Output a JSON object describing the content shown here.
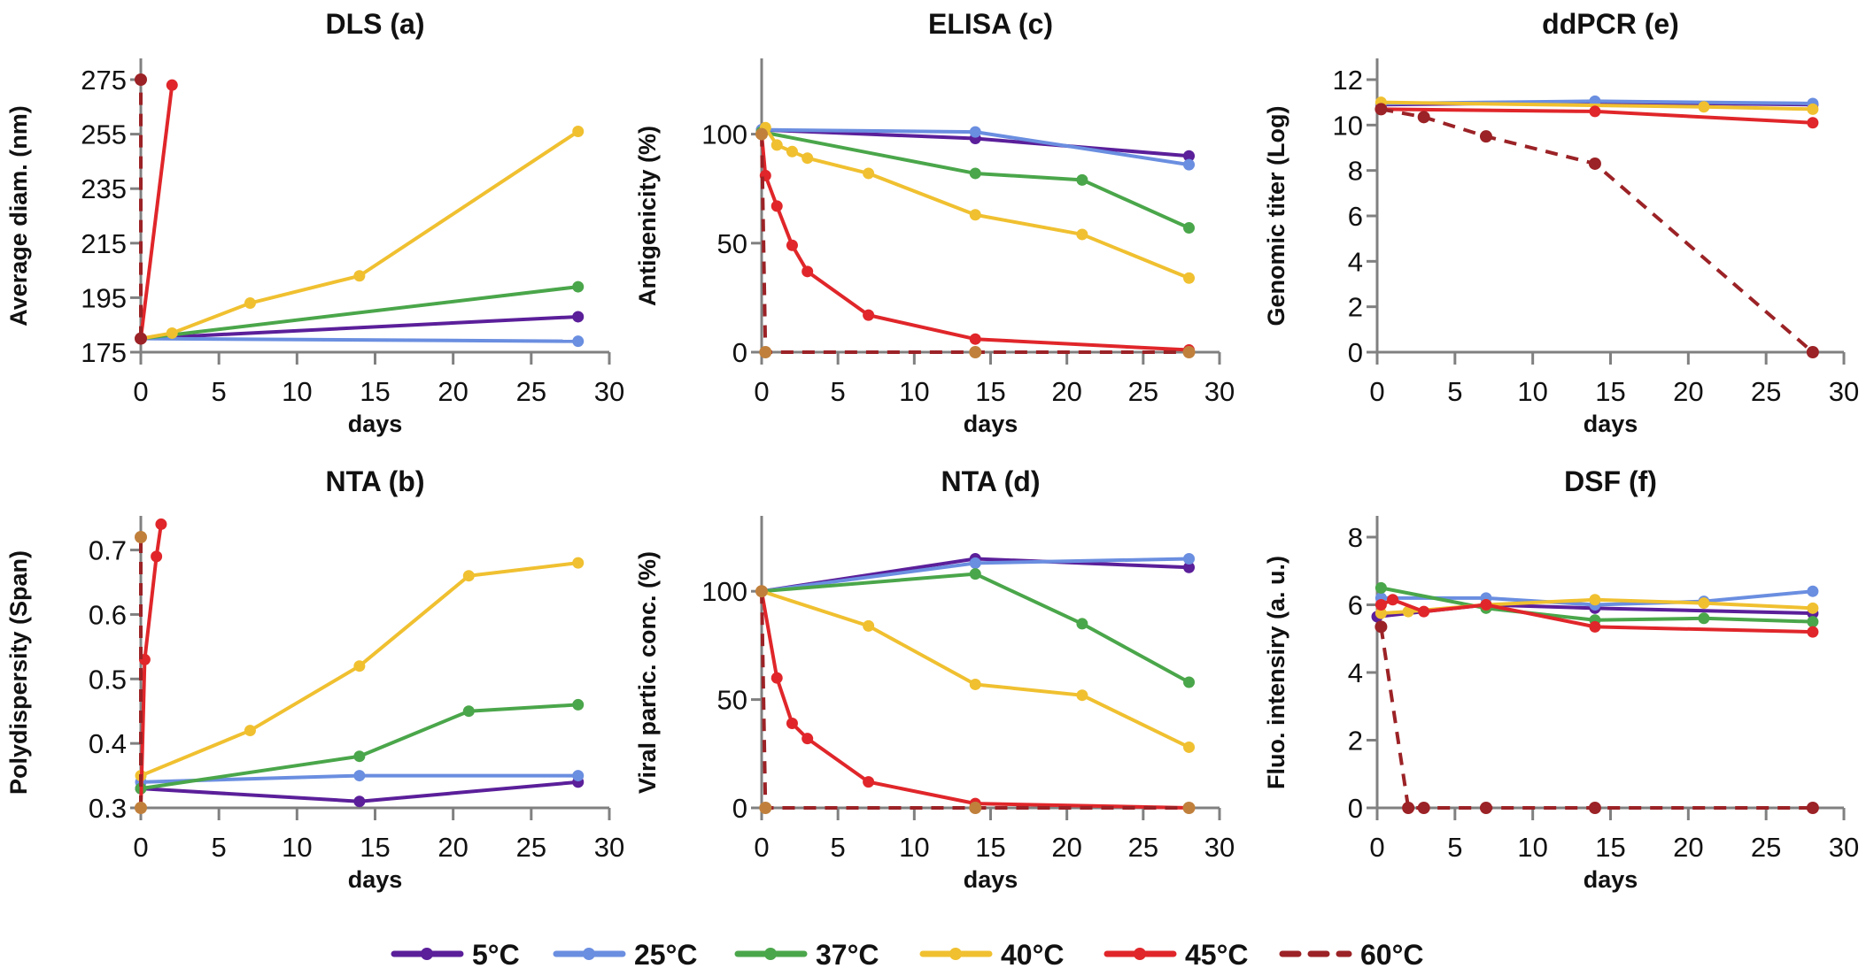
{
  "series_styles": [
    {
      "name": "5°C",
      "color": "#5b1f9a",
      "dashed": false
    },
    {
      "name": "25°C",
      "color": "#6a8ee0",
      "dashed": false
    },
    {
      "name": "37°C",
      "color": "#4aa64a",
      "dashed": false
    },
    {
      "name": "40°C",
      "color": "#f0c030",
      "dashed": false
    },
    {
      "name": "45°C",
      "color": "#e0262a",
      "dashed": false
    },
    {
      "name": "60°C",
      "color": "#9b2226",
      "dashed": true
    }
  ],
  "chart_data": [
    {
      "type": "line",
      "title": "DLS (a)",
      "xlabel": "days",
      "ylabel": "Average diam. (nm)",
      "xlim": [
        0,
        30
      ],
      "xticks": [
        "0",
        "5",
        "10",
        "15",
        "20",
        "25",
        "30"
      ],
      "ylim": [
        175,
        275
      ],
      "yticks": [
        "175",
        "195",
        "215",
        "235",
        "255",
        "275"
      ],
      "grid": false,
      "series": [
        {
          "name": "5°C",
          "x": [
            0,
            28
          ],
          "y": [
            180,
            188
          ]
        },
        {
          "name": "25°C",
          "x": [
            0,
            28
          ],
          "y": [
            180,
            179
          ]
        },
        {
          "name": "37°C",
          "x": [
            0,
            28
          ],
          "y": [
            180,
            199
          ]
        },
        {
          "name": "40°C",
          "x": [
            0,
            2,
            7,
            14,
            28
          ],
          "y": [
            180,
            182,
            193,
            203,
            256
          ]
        },
        {
          "name": "45°C",
          "x": [
            0,
            2
          ],
          "y": [
            180,
            273
          ]
        },
        {
          "name": "60°C",
          "x": [
            0,
            0
          ],
          "y": [
            180,
            275
          ],
          "marker_color": "#9b2226"
        }
      ]
    },
    {
      "type": "line",
      "title": "ELISA (c)",
      "xlabel": "days",
      "ylabel": "Antigenicity (%)",
      "xlim": [
        0,
        30
      ],
      "xticks": [
        "0",
        "5",
        "10",
        "15",
        "20",
        "25",
        "30"
      ],
      "ylim": [
        0,
        125
      ],
      "yticks": [
        "0",
        "50",
        "100"
      ],
      "grid": false,
      "series": [
        {
          "name": "5°C",
          "x": [
            0,
            14,
            28
          ],
          "y": [
            102,
            98,
            90
          ]
        },
        {
          "name": "25°C",
          "x": [
            0,
            14,
            28
          ],
          "y": [
            102,
            101,
            86
          ]
        },
        {
          "name": "37°C",
          "x": [
            0,
            14,
            21,
            28
          ],
          "y": [
            101,
            82,
            79,
            57
          ]
        },
        {
          "name": "40°C",
          "x": [
            0.25,
            1,
            2,
            3,
            7,
            14,
            21,
            28
          ],
          "y": [
            103,
            95,
            92,
            89,
            82,
            63,
            54,
            34
          ]
        },
        {
          "name": "45°C",
          "x": [
            0,
            0.25,
            1,
            2,
            3,
            7,
            14,
            28
          ],
          "y": [
            100,
            81,
            67,
            49,
            37,
            17,
            6,
            1
          ]
        },
        {
          "name": "60°C",
          "x": [
            0,
            0.25,
            14,
            28
          ],
          "y": [
            100,
            0,
            0,
            0
          ],
          "marker_color": "#c0803c"
        }
      ]
    },
    {
      "type": "line",
      "title": "ddPCR (e)",
      "xlabel": "days",
      "ylabel": "Genomic titer (Log)",
      "xlim": [
        0,
        30
      ],
      "xticks": [
        "0",
        "5",
        "10",
        "15",
        "20",
        "25",
        "30"
      ],
      "ylim": [
        0,
        12
      ],
      "yticks": [
        "0",
        "2",
        "4",
        "6",
        "8",
        "10",
        "12"
      ],
      "grid": false,
      "series": [
        {
          "name": "5°C",
          "x": [
            0.25,
            14,
            28
          ],
          "y": [
            10.9,
            11.0,
            10.9
          ]
        },
        {
          "name": "25°C",
          "x": [
            0.25,
            14,
            28
          ],
          "y": [
            10.95,
            11.05,
            10.95
          ]
        },
        {
          "name": "40°C",
          "x": [
            0.25,
            21,
            28
          ],
          "y": [
            11.0,
            10.8,
            10.7
          ]
        },
        {
          "name": "45°C",
          "x": [
            0.25,
            14,
            28
          ],
          "y": [
            10.7,
            10.6,
            10.1
          ]
        },
        {
          "name": "60°C",
          "x": [
            0.25,
            3,
            7,
            14,
            28
          ],
          "y": [
            10.7,
            10.35,
            9.5,
            8.3,
            0
          ],
          "marker_color": "#9b2226"
        }
      ]
    },
    {
      "type": "line",
      "title": "NTA (b)",
      "xlabel": "days",
      "ylabel": "Polydispersity (Span)",
      "xlim": [
        0,
        30
      ],
      "xticks": [
        "0",
        "5",
        "10",
        "15",
        "20",
        "25",
        "30"
      ],
      "ylim": [
        0.3,
        0.72
      ],
      "yticks": [
        "0.3",
        "0.4",
        "0.5",
        "0.6",
        "0.7"
      ],
      "grid": false,
      "series": [
        {
          "name": "5°C",
          "x": [
            0,
            14,
            28
          ],
          "y": [
            0.33,
            0.31,
            0.34
          ]
        },
        {
          "name": "25°C",
          "x": [
            0,
            14,
            28
          ],
          "y": [
            0.34,
            0.35,
            0.35
          ]
        },
        {
          "name": "37°C",
          "x": [
            0,
            14,
            21,
            28
          ],
          "y": [
            0.33,
            0.38,
            0.45,
            0.46
          ]
        },
        {
          "name": "40°C",
          "x": [
            0,
            7,
            14,
            21,
            28
          ],
          "y": [
            0.35,
            0.42,
            0.52,
            0.66,
            0.68
          ]
        },
        {
          "name": "45°C",
          "x": [
            0,
            0.25,
            1,
            1.3
          ],
          "y": [
            0.3,
            0.53,
            0.69,
            0.74
          ]
        },
        {
          "name": "60°C",
          "x": [
            0,
            0
          ],
          "y": [
            0.3,
            0.72
          ],
          "marker_color": "#c0803c"
        }
      ]
    },
    {
      "type": "line",
      "title": "NTA (d)",
      "xlabel": "days",
      "ylabel": "Viral partic. conc. (%)",
      "xlim": [
        0,
        30
      ],
      "xticks": [
        "0",
        "5",
        "10",
        "15",
        "20",
        "25",
        "30"
      ],
      "ylim": [
        0,
        125
      ],
      "yticks": [
        "0",
        "50",
        "100"
      ],
      "grid": false,
      "series": [
        {
          "name": "5°C",
          "x": [
            0,
            14,
            28
          ],
          "y": [
            100,
            115,
            111
          ]
        },
        {
          "name": "25°C",
          "x": [
            0,
            14,
            28
          ],
          "y": [
            100,
            113,
            115
          ]
        },
        {
          "name": "37°C",
          "x": [
            0,
            14,
            21,
            28
          ],
          "y": [
            100,
            108,
            85,
            58
          ]
        },
        {
          "name": "40°C",
          "x": [
            0,
            7,
            14,
            21,
            28
          ],
          "y": [
            100,
            84,
            57,
            52,
            28
          ]
        },
        {
          "name": "45°C",
          "x": [
            0,
            1,
            2,
            3,
            7,
            14,
            28
          ],
          "y": [
            100,
            60,
            39,
            32,
            12,
            2,
            0
          ]
        },
        {
          "name": "60°C",
          "x": [
            0,
            0.25,
            14,
            28
          ],
          "y": [
            100,
            0,
            0,
            0
          ],
          "marker_color": "#c0803c"
        }
      ]
    },
    {
      "type": "line",
      "title": "DSF (f)",
      "xlabel": "days",
      "ylabel": "Fluo. intensiry (a. u.)",
      "xlim": [
        0,
        30
      ],
      "xticks": [
        "0",
        "5",
        "10",
        "15",
        "20",
        "25",
        "30"
      ],
      "ylim": [
        0,
        8
      ],
      "yticks": [
        "0",
        "2",
        "4",
        "6",
        "8"
      ],
      "grid": false,
      "series": [
        {
          "name": "5°C",
          "x": [
            0,
            7,
            14,
            28
          ],
          "y": [
            5.65,
            6.0,
            5.9,
            5.75
          ]
        },
        {
          "name": "25°C",
          "x": [
            0.25,
            7,
            14,
            21,
            28
          ],
          "y": [
            6.2,
            6.2,
            6.0,
            6.1,
            6.4
          ]
        },
        {
          "name": "37°C",
          "x": [
            0.25,
            7,
            14,
            21,
            28
          ],
          "y": [
            6.5,
            5.9,
            5.55,
            5.6,
            5.5
          ]
        },
        {
          "name": "40°C",
          "x": [
            0.25,
            2,
            7,
            14,
            21,
            28
          ],
          "y": [
            5.75,
            5.8,
            6.0,
            6.15,
            6.05,
            5.9
          ]
        },
        {
          "name": "45°C",
          "x": [
            0.25,
            1,
            3,
            7,
            14,
            28
          ],
          "y": [
            6.0,
            6.15,
            5.8,
            6.0,
            5.35,
            5.2
          ]
        },
        {
          "name": "60°C",
          "x": [
            0.25,
            2,
            3,
            7,
            14,
            28
          ],
          "y": [
            5.35,
            0,
            0,
            0,
            0,
            0
          ],
          "marker_color": "#9b2226"
        }
      ]
    }
  ],
  "legend": {
    "placement": "bottom",
    "items": [
      "5°C",
      "25°C",
      "37°C",
      "40°C",
      "45°C",
      "60°C"
    ]
  }
}
